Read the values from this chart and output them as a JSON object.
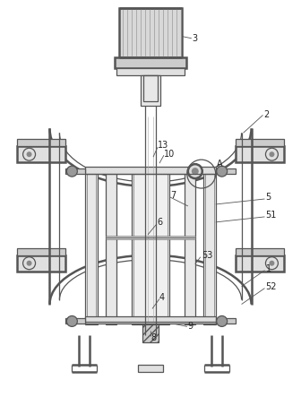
{
  "bg_color": "#ffffff",
  "lc": "#555555",
  "lw": 0.9,
  "fig_width": 3.36,
  "fig_height": 4.43
}
